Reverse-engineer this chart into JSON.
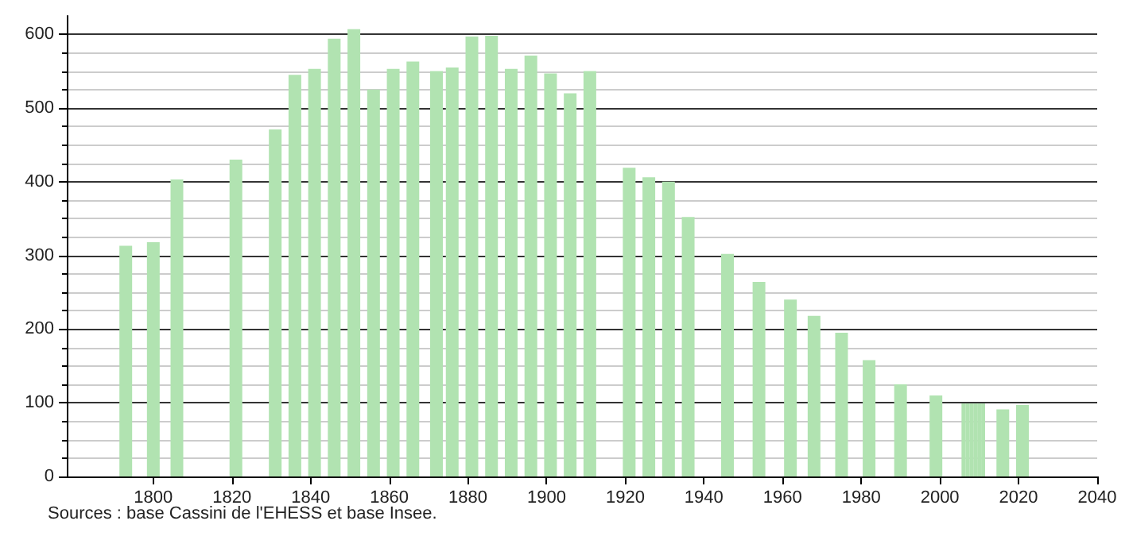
{
  "chart_data": {
    "type": "bar",
    "x": [
      1793,
      1800,
      1806,
      1821,
      1831,
      1836,
      1841,
      1846,
      1851,
      1856,
      1861,
      1866,
      1872,
      1876,
      1881,
      1886,
      1891,
      1896,
      1901,
      1906,
      1911,
      1921,
      1926,
      1931,
      1936,
      1946,
      1954,
      1962,
      1968,
      1975,
      1982,
      1990,
      1999,
      2006,
      2007,
      2008,
      2009,
      2010,
      2011,
      2016,
      2021
    ],
    "values": [
      313,
      318,
      403,
      430,
      471,
      545,
      553,
      594,
      607,
      525,
      553,
      563,
      550,
      555,
      597,
      598,
      553,
      571,
      547,
      520,
      550,
      419,
      406,
      400,
      352,
      302,
      264,
      240,
      218,
      195,
      158,
      125,
      110,
      99,
      99,
      99,
      99,
      99,
      99,
      91,
      97
    ],
    "color": "#b1e3b1",
    "xlim": [
      1778,
      2040
    ],
    "xticks": [
      1800,
      1820,
      1840,
      1860,
      1880,
      1900,
      1920,
      1940,
      1960,
      1980,
      2000,
      2020,
      2040
    ],
    "ylim": [
      0,
      625
    ],
    "yticks": [
      0,
      100,
      200,
      300,
      400,
      500,
      600
    ],
    "grid": "y",
    "annotations": [
      "Sources : base Cassini de l'EHESS et base Insee."
    ]
  }
}
